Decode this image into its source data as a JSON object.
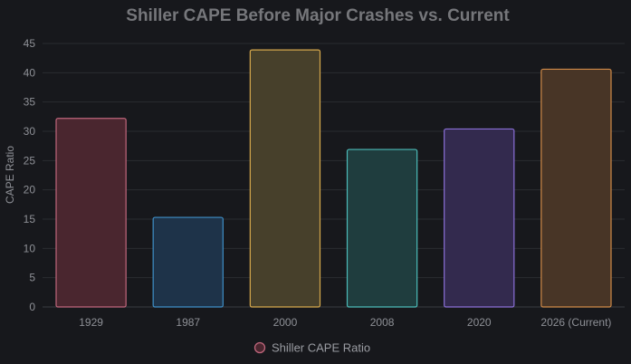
{
  "chart_data": {
    "type": "bar",
    "title": "Shiller CAPE Before Major Crashes vs. Current",
    "xlabel": "",
    "ylabel": "CAPE Ratio",
    "ylim": [
      0,
      45
    ],
    "yticks": [
      0,
      5,
      10,
      15,
      20,
      25,
      30,
      35,
      40,
      45
    ],
    "grid": "horizontal",
    "legend_position": "bottom-center",
    "categories": [
      "1929",
      "1987",
      "2000",
      "2008",
      "2020",
      "2026 (Current)"
    ],
    "series": [
      {
        "name": "Shiller CAPE Ratio",
        "values": [
          32.2,
          15.3,
          43.9,
          26.9,
          30.4,
          40.6
        ]
      }
    ],
    "bar_colors": [
      {
        "fill": "#4a262f",
        "stroke": "#c0667c"
      },
      {
        "fill": "#1e3349",
        "stroke": "#3f8fc7"
      },
      {
        "fill": "#47402b",
        "stroke": "#d6a84c"
      },
      {
        "fill": "#1f3d3e",
        "stroke": "#4cbcb9"
      },
      {
        "fill": "#332a4e",
        "stroke": "#8a6fd6"
      },
      {
        "fill": "#483526",
        "stroke": "#d08a48"
      }
    ],
    "legend_marker": {
      "fill": "#4a262f",
      "stroke": "#c0667c"
    }
  }
}
